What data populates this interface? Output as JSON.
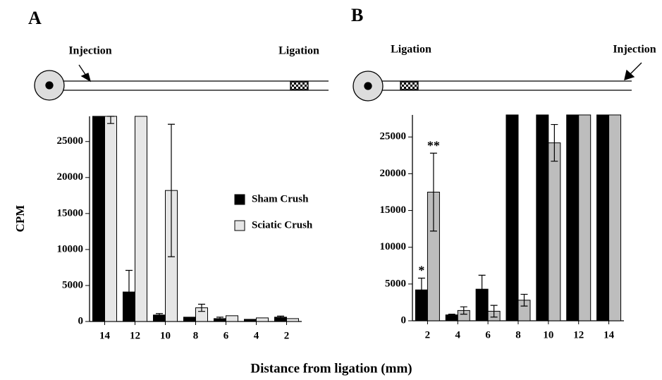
{
  "xlabel": "Distance from ligation (mm)",
  "chart_data": [
    {
      "type": "bar",
      "panel": "A",
      "ylabel": "CPM",
      "diagram": {
        "left": "Injection",
        "right": "Ligation"
      },
      "categories": [
        "14",
        "12",
        "10",
        "8",
        "6",
        "4",
        "2"
      ],
      "series": [
        {
          "name": "Sham Crush",
          "color": "#000000",
          "values": [
            28500,
            4100,
            900,
            600,
            400,
            300,
            600
          ],
          "errors": [
            null,
            3000,
            200,
            null,
            200,
            null,
            150
          ]
        },
        {
          "name": "Sciatic Crush",
          "color": "#e6e6e6",
          "values": [
            28500,
            28500,
            18200,
            1900,
            800,
            500,
            400
          ],
          "errors": [
            1000,
            null,
            9200,
            500,
            null,
            null,
            null
          ]
        }
      ],
      "ylim": [
        0,
        28500
      ],
      "yticks": [
        0,
        5000,
        10000,
        15000,
        20000,
        25000
      ],
      "legend": "right"
    },
    {
      "type": "bar",
      "panel": "B",
      "diagram": {
        "left": "Ligation",
        "right": "Injection"
      },
      "categories": [
        "2",
        "4",
        "6",
        "8",
        "10",
        "12",
        "14"
      ],
      "series": [
        {
          "color": "#000000",
          "values": [
            4200,
            800,
            4300,
            28000,
            28000,
            28000,
            28000
          ],
          "errors": [
            1600,
            100,
            1900,
            null,
            null,
            null,
            null
          ],
          "significance": [
            "*",
            null,
            null,
            null,
            null,
            null,
            null
          ]
        },
        {
          "color": "#bdbdbd",
          "values": [
            17500,
            1400,
            1300,
            2800,
            24200,
            28000,
            28000
          ],
          "errors": [
            5300,
            500,
            800,
            800,
            2500,
            null,
            null
          ],
          "significance": [
            "**",
            null,
            null,
            null,
            null,
            null,
            null
          ]
        }
      ],
      "ylim": [
        0,
        28000
      ],
      "yticks": [
        0,
        5000,
        10000,
        15000,
        20000,
        25000
      ]
    }
  ]
}
